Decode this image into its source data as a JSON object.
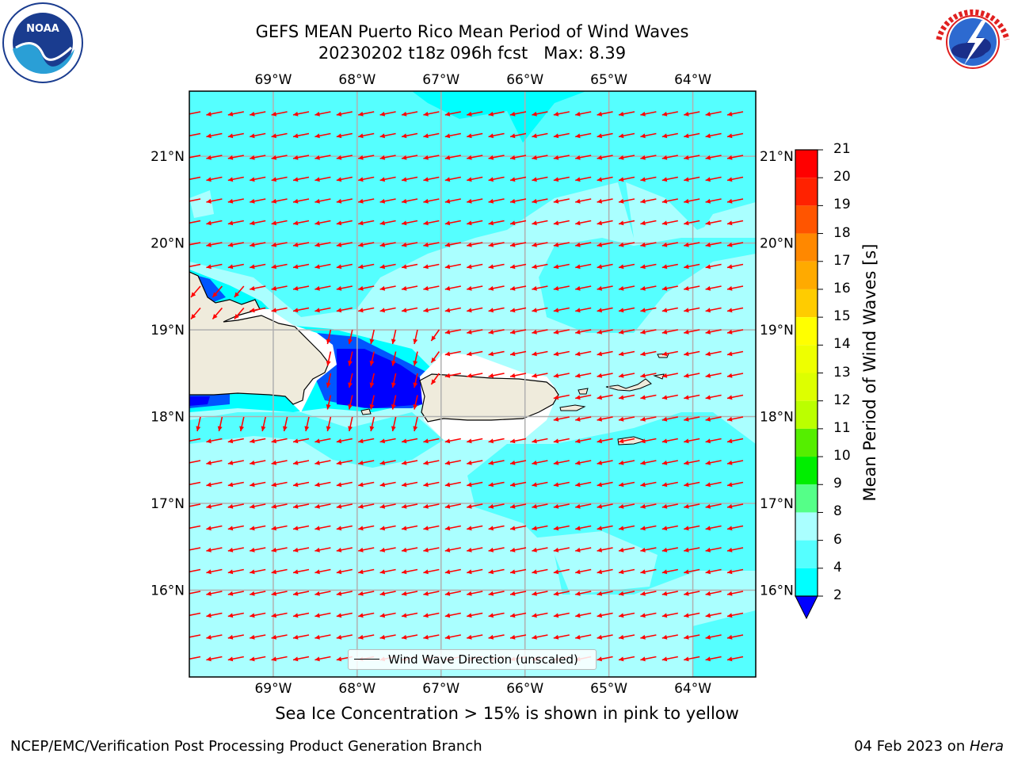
{
  "title": {
    "line1": "GEFS MEAN Puerto Rico Mean Period of Wind Waves",
    "line2": "20230202 t18z 096h fcst   Max: 8.39"
  },
  "logos": {
    "left": "noaa-logo",
    "right": "national-weather-service-logo"
  },
  "map": {
    "lon_range": [
      -70.0,
      -63.25
    ],
    "lat_range": [
      15.0,
      21.75
    ],
    "lon_ticks": [
      "69°W",
      "68°W",
      "67°W",
      "66°W",
      "65°W",
      "64°W"
    ],
    "lat_ticks": [
      "21°N",
      "20°N",
      "19°N",
      "18°N",
      "17°N",
      "16°N"
    ],
    "gridlines": true,
    "arrow_color": "#ff0000",
    "land_color": "#efebdc",
    "legend": {
      "label": "Wind Wave Direction (unscaled)",
      "placement": "bottom-center"
    },
    "field_colors": {
      "2-4": "#0055ff",
      "4-6": "#00ffff",
      "6-8": "#55ffff",
      "8-9": "#aaffff",
      "below-2": "#0000ff"
    }
  },
  "colorbar": {
    "label": "Mean Period of Wind Waves [s]",
    "ticks": [
      "21",
      "20",
      "19",
      "18",
      "17",
      "16",
      "15",
      "14",
      "13",
      "12",
      "11",
      "10",
      "9",
      "8",
      "6",
      "4",
      "2"
    ],
    "colors": [
      "#ff0000",
      "#ff2200",
      "#ff5500",
      "#ff8800",
      "#ffaa00",
      "#ffcc00",
      "#ffff00",
      "#eeff00",
      "#ddff00",
      "#bbff00",
      "#55ee00",
      "#00ee00",
      "#55ff88",
      "#aaffff",
      "#55ffff",
      "#00ffff",
      "#0077ff"
    ],
    "under_color": "#0000ff"
  },
  "caption": "Sea Ice Concentration > 15% is shown in pink to yellow",
  "footer": {
    "left": "NCEP/EMC/Verification Post Processing Product Generation Branch",
    "right_date": "04 Feb 2023 on ",
    "right_machine": "Hera"
  }
}
